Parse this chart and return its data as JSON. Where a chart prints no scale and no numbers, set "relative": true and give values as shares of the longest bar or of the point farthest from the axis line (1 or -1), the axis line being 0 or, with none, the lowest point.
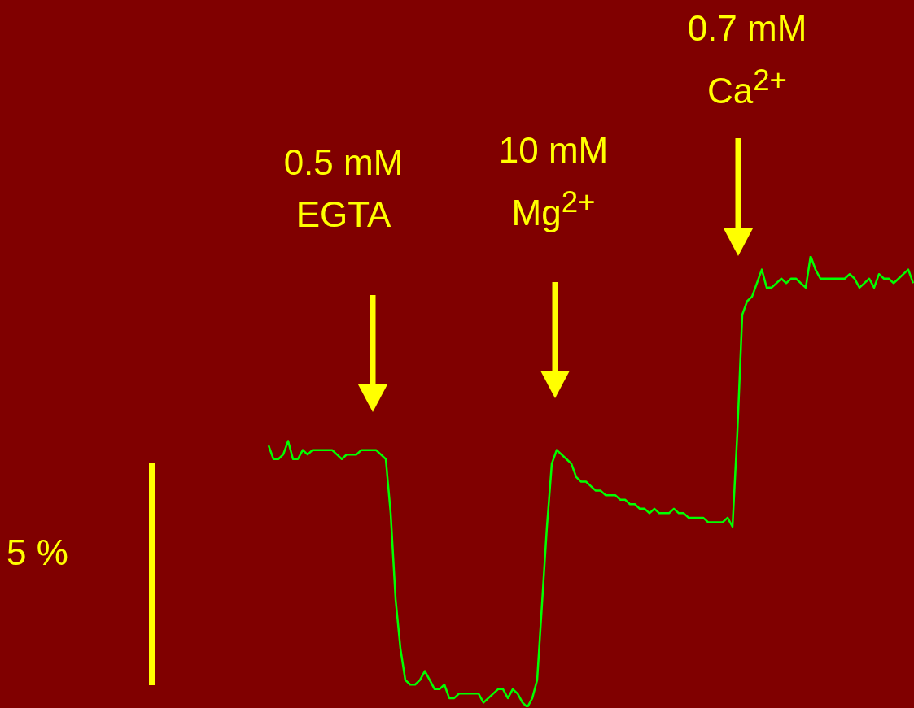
{
  "chart_data": {
    "type": "line",
    "relative": true,
    "marker": "none",
    "categories": [
      null,
      null,
      null,
      null,
      null,
      null,
      null,
      null,
      null,
      null,
      null,
      null,
      null,
      null,
      null,
      null,
      null,
      null,
      null,
      null,
      null,
      null,
      null,
      null,
      null,
      null,
      null,
      null,
      null,
      null,
      null,
      null,
      null,
      null,
      null,
      null,
      null,
      null,
      null,
      null,
      null,
      null,
      null,
      null,
      null,
      null,
      null,
      null,
      null,
      null,
      null,
      null,
      null,
      null,
      null,
      null,
      null,
      null,
      null,
      null,
      null,
      null,
      null,
      null,
      null,
      null,
      null,
      null,
      null,
      null,
      null,
      null,
      null,
      null,
      null,
      null,
      null,
      null,
      null,
      null,
      null,
      null,
      null,
      null,
      null,
      null,
      null,
      null,
      null,
      null,
      null,
      null,
      null,
      null,
      null,
      null,
      null,
      null,
      null,
      null,
      null,
      null,
      null,
      null,
      null,
      null,
      null,
      null,
      null,
      null,
      null,
      null,
      null,
      null,
      null,
      null,
      null,
      null,
      null,
      null,
      null,
      null,
      null,
      null,
      null,
      null,
      null,
      null,
      null,
      null,
      null,
      null,
      null
    ],
    "series": [
      {
        "color": "#00ff00",
        "values": [
          0.58,
          0.55,
          0.55,
          0.56,
          0.59,
          0.55,
          0.55,
          0.57,
          0.56,
          0.57,
          0.57,
          0.57,
          0.57,
          0.57,
          0.56,
          0.55,
          0.56,
          0.56,
          0.56,
          0.57,
          0.57,
          0.57,
          0.57,
          0.56,
          0.55,
          0.43,
          0.24,
          0.13,
          0.06,
          0.05,
          0.05,
          0.06,
          0.08,
          0.06,
          0.04,
          0.04,
          0.05,
          0.02,
          0.02,
          0.03,
          0.03,
          0.03,
          0.03,
          0.03,
          0.01,
          0.02,
          0.03,
          0.04,
          0.04,
          0.02,
          0.04,
          0.03,
          0.01,
          0.0,
          0.02,
          0.06,
          0.23,
          0.4,
          0.54,
          0.57,
          0.56,
          0.55,
          0.54,
          0.51,
          0.5,
          0.5,
          0.49,
          0.48,
          0.48,
          0.47,
          0.47,
          0.47,
          0.46,
          0.46,
          0.45,
          0.45,
          0.44,
          0.44,
          0.43,
          0.44,
          0.43,
          0.43,
          0.43,
          0.44,
          0.43,
          0.43,
          0.42,
          0.42,
          0.42,
          0.42,
          0.41,
          0.41,
          0.41,
          0.41,
          0.42,
          0.4,
          0.61,
          0.87,
          0.9,
          0.91,
          0.94,
          0.97,
          0.93,
          0.93,
          0.94,
          0.95,
          0.94,
          0.95,
          0.95,
          0.94,
          0.93,
          1.0,
          0.97,
          0.95,
          0.95,
          0.95,
          0.95,
          0.95,
          0.95,
          0.96,
          0.95,
          0.93,
          0.94,
          0.95,
          0.93,
          0.96,
          0.95,
          0.95,
          0.94,
          0.95,
          0.96,
          0.97,
          0.94
        ]
      }
    ],
    "annotations": [
      "0.5 mM\nEGTA",
      "10 mM\nMg$^{2+}$",
      "0.7 mM\nCa$^{2+}$",
      "5 %"
    ]
  }
}
